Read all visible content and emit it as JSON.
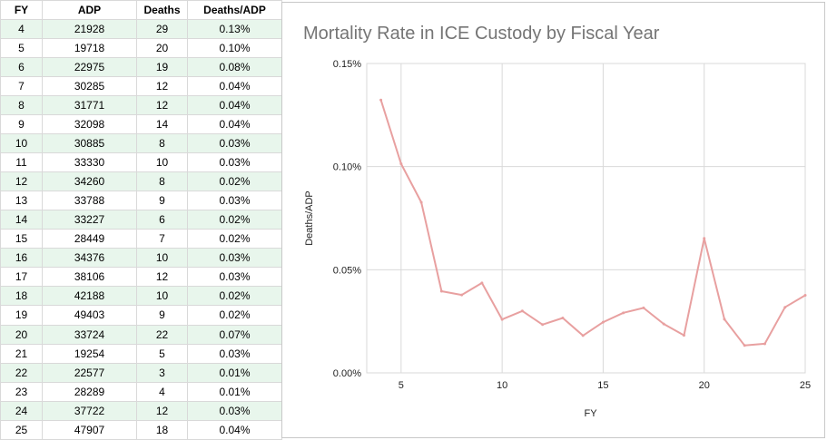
{
  "table": {
    "headers": [
      "FY",
      "ADP",
      "Deaths",
      "Deaths/ADP"
    ],
    "rows": [
      [
        "4",
        "21928",
        "29",
        "0.13%"
      ],
      [
        "5",
        "19718",
        "20",
        "0.10%"
      ],
      [
        "6",
        "22975",
        "19",
        "0.08%"
      ],
      [
        "7",
        "30285",
        "12",
        "0.04%"
      ],
      [
        "8",
        "31771",
        "12",
        "0.04%"
      ],
      [
        "9",
        "32098",
        "14",
        "0.04%"
      ],
      [
        "10",
        "30885",
        "8",
        "0.03%"
      ],
      [
        "11",
        "33330",
        "10",
        "0.03%"
      ],
      [
        "12",
        "34260",
        "8",
        "0.02%"
      ],
      [
        "13",
        "33788",
        "9",
        "0.03%"
      ],
      [
        "14",
        "33227",
        "6",
        "0.02%"
      ],
      [
        "15",
        "28449",
        "7",
        "0.02%"
      ],
      [
        "16",
        "34376",
        "10",
        "0.03%"
      ],
      [
        "17",
        "38106",
        "12",
        "0.03%"
      ],
      [
        "18",
        "42188",
        "10",
        "0.02%"
      ],
      [
        "19",
        "49403",
        "9",
        "0.02%"
      ],
      [
        "20",
        "33724",
        "22",
        "0.07%"
      ],
      [
        "21",
        "19254",
        "5",
        "0.03%"
      ],
      [
        "22",
        "22577",
        "3",
        "0.01%"
      ],
      [
        "23",
        "28289",
        "4",
        "0.01%"
      ],
      [
        "24",
        "37722",
        "12",
        "0.03%"
      ],
      [
        "25",
        "47907",
        "18",
        "0.04%"
      ]
    ]
  },
  "chart_data": {
    "type": "line",
    "title": "Mortality Rate in ICE Custody by Fiscal Year",
    "xlabel": "FY",
    "ylabel": "Deaths/ADP",
    "x": [
      4,
      5,
      6,
      7,
      8,
      9,
      10,
      11,
      12,
      13,
      14,
      15,
      16,
      17,
      18,
      19,
      20,
      21,
      22,
      23,
      24,
      25
    ],
    "series": [
      {
        "name": "Deaths/ADP",
        "values": [
          0.1323,
          0.1014,
          0.0827,
          0.0396,
          0.0378,
          0.0436,
          0.0259,
          0.03,
          0.0234,
          0.0266,
          0.0181,
          0.0246,
          0.0291,
          0.0315,
          0.0237,
          0.0182,
          0.0652,
          0.026,
          0.0133,
          0.0141,
          0.0318,
          0.0376
        ],
        "color": "#e8a0a0"
      }
    ],
    "xlim": [
      3.3,
      25
    ],
    "ylim": [
      0,
      0.15
    ],
    "xticks": [
      {
        "value": 5,
        "label": "5"
      },
      {
        "value": 10,
        "label": "10"
      },
      {
        "value": 15,
        "label": "15"
      },
      {
        "value": 20,
        "label": "20"
      },
      {
        "value": 25,
        "label": "25"
      }
    ],
    "yticks": [
      {
        "value": 0,
        "label": "0.00%"
      },
      {
        "value": 0.05,
        "label": "0.05%"
      },
      {
        "value": 0.1,
        "label": "0.10%"
      },
      {
        "value": 0.15,
        "label": "0.15%"
      }
    ],
    "grid": true,
    "legend": "none"
  },
  "colors": {
    "row_alt": "#e8f6ec",
    "grid": "#d9d9d9",
    "line": "#e8a0a0",
    "title": "#757575"
  }
}
